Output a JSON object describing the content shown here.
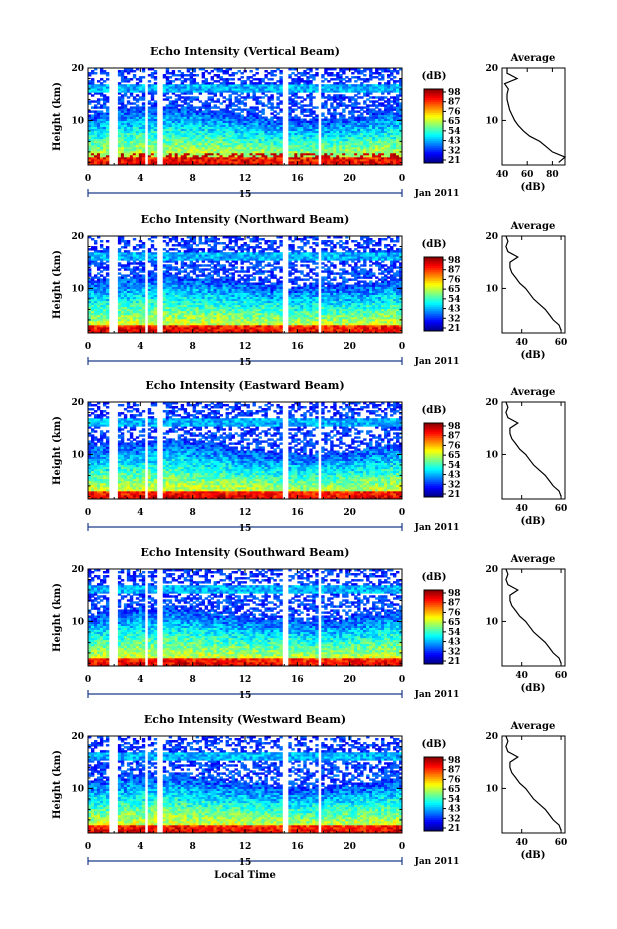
{
  "figure": {
    "xlabel_bottom": "Local Time",
    "date_label": "Jan 2011",
    "day_label": "15"
  },
  "chart_data": [
    {
      "type": "heatmap",
      "title": "Echo Intensity (Vertical Beam)",
      "ylabel": "Height (km)",
      "x_range": [
        0,
        24
      ],
      "y_range": [
        1.5,
        20
      ],
      "x_ticks": [
        "0",
        "4",
        "8",
        "12",
        "16",
        "20",
        "0"
      ],
      "y_ticks": [
        "20",
        "10"
      ],
      "colorbar": {
        "label": "(dB)",
        "ticks": [
          "98",
          "87",
          "76",
          "65",
          "54",
          "43",
          "32",
          "21"
        ]
      },
      "data_gaps_hours": [
        [
          1.7,
          2.4
        ],
        [
          4.3,
          4.6
        ],
        [
          5.2,
          5.6
        ],
        [
          14.8,
          15.3
        ],
        [
          17.6,
          17.9
        ]
      ],
      "average_profile": {
        "title": "Average",
        "xlabel": "(dB)",
        "x_ticks": [
          "40",
          "60",
          "80"
        ],
        "xlim": [
          40,
          90
        ],
        "heights": [
          2,
          3,
          4,
          5,
          6,
          7,
          8,
          9,
          10,
          11,
          12,
          13,
          14,
          15,
          16,
          17,
          18,
          19,
          20
        ],
        "values": [
          85,
          90,
          80,
          75,
          70,
          62,
          57,
          53,
          50,
          48,
          46,
          45,
          44,
          44,
          45,
          42,
          52,
          44,
          44
        ]
      }
    },
    {
      "type": "heatmap",
      "title": "Echo Intensity (Northward Beam)",
      "ylabel": "Height (km)",
      "x_range": [
        0,
        24
      ],
      "y_range": [
        1.5,
        20
      ],
      "x_ticks": [
        "0",
        "4",
        "8",
        "12",
        "16",
        "20",
        "0"
      ],
      "y_ticks": [
        "20",
        "10"
      ],
      "colorbar": {
        "label": "(dB)",
        "ticks": [
          "98",
          "87",
          "76",
          "65",
          "54",
          "43",
          "32",
          "21"
        ]
      },
      "data_gaps_hours": [
        [
          1.7,
          2.4
        ],
        [
          4.3,
          4.6
        ],
        [
          5.2,
          5.6
        ],
        [
          14.8,
          15.3
        ],
        [
          17.6,
          17.9
        ]
      ],
      "average_profile": {
        "title": "Average",
        "xlabel": "(dB)",
        "x_ticks": [
          "40",
          "60"
        ],
        "xlim": [
          30,
          62
        ],
        "heights": [
          2,
          3,
          4,
          5,
          6,
          7,
          8,
          9,
          10,
          11,
          12,
          13,
          14,
          15,
          16,
          17,
          18,
          19,
          20
        ],
        "values": [
          60,
          59,
          56,
          54,
          52,
          49,
          46,
          44,
          42,
          39,
          37,
          35,
          34,
          34,
          38,
          33,
          32,
          33,
          32
        ]
      }
    },
    {
      "type": "heatmap",
      "title": "Echo Intensity (Eastward Beam)",
      "ylabel": "Height (km)",
      "x_range": [
        0,
        24
      ],
      "y_range": [
        1.5,
        20
      ],
      "x_ticks": [
        "0",
        "4",
        "8",
        "12",
        "16",
        "20",
        "0"
      ],
      "y_ticks": [
        "20",
        "10"
      ],
      "colorbar": {
        "label": "(dB)",
        "ticks": [
          "98",
          "87",
          "76",
          "65",
          "54",
          "43",
          "32",
          "21"
        ]
      },
      "data_gaps_hours": [
        [
          1.7,
          2.4
        ],
        [
          4.3,
          4.6
        ],
        [
          5.2,
          5.6
        ],
        [
          14.8,
          15.3
        ],
        [
          17.6,
          17.9
        ]
      ],
      "average_profile": {
        "title": "Average",
        "xlabel": "(dB)",
        "x_ticks": [
          "40",
          "60"
        ],
        "xlim": [
          30,
          62
        ],
        "heights": [
          2,
          3,
          4,
          5,
          6,
          7,
          8,
          9,
          10,
          11,
          12,
          13,
          14,
          15,
          16,
          17,
          18,
          19,
          20
        ],
        "values": [
          60,
          59,
          56,
          54,
          52,
          49,
          46,
          44,
          42,
          39,
          37,
          35,
          34,
          34,
          38,
          33,
          32,
          33,
          32
        ]
      }
    },
    {
      "type": "heatmap",
      "title": "Echo Intensity (Southward Beam)",
      "ylabel": "Height (km)",
      "x_range": [
        0,
        24
      ],
      "y_range": [
        1.5,
        20
      ],
      "x_ticks": [
        "0",
        "4",
        "8",
        "12",
        "16",
        "20",
        "0"
      ],
      "y_ticks": [
        "20",
        "10"
      ],
      "colorbar": {
        "label": "(dB)",
        "ticks": [
          "98",
          "87",
          "76",
          "65",
          "54",
          "43",
          "32",
          "21"
        ]
      },
      "data_gaps_hours": [
        [
          1.7,
          2.4
        ],
        [
          4.3,
          4.6
        ],
        [
          5.2,
          5.6
        ],
        [
          14.8,
          15.3
        ],
        [
          17.6,
          17.9
        ]
      ],
      "average_profile": {
        "title": "Average",
        "xlabel": "(dB)",
        "x_ticks": [
          "40",
          "60"
        ],
        "xlim": [
          30,
          62
        ],
        "heights": [
          2,
          3,
          4,
          5,
          6,
          7,
          8,
          9,
          10,
          11,
          12,
          13,
          14,
          15,
          16,
          17,
          18,
          19,
          20
        ],
        "values": [
          60,
          59,
          56,
          54,
          52,
          49,
          46,
          44,
          42,
          39,
          37,
          35,
          34,
          34,
          38,
          33,
          32,
          33,
          32
        ]
      }
    },
    {
      "type": "heatmap",
      "title": "Echo Intensity (Westward Beam)",
      "ylabel": "Height (km)",
      "x_range": [
        0,
        24
      ],
      "y_range": [
        1.5,
        20
      ],
      "x_ticks": [
        "0",
        "4",
        "8",
        "12",
        "16",
        "20",
        "0"
      ],
      "y_ticks": [
        "20",
        "10"
      ],
      "colorbar": {
        "label": "(dB)",
        "ticks": [
          "98",
          "87",
          "76",
          "65",
          "54",
          "43",
          "32",
          "21"
        ]
      },
      "data_gaps_hours": [
        [
          1.7,
          2.4
        ],
        [
          4.3,
          4.6
        ],
        [
          5.2,
          5.6
        ],
        [
          14.8,
          15.3
        ],
        [
          17.6,
          17.9
        ]
      ],
      "average_profile": {
        "title": "Average",
        "xlabel": "(dB)",
        "x_ticks": [
          "40",
          "60"
        ],
        "xlim": [
          30,
          62
        ],
        "heights": [
          2,
          3,
          4,
          5,
          6,
          7,
          8,
          9,
          10,
          11,
          12,
          13,
          14,
          15,
          16,
          17,
          18,
          19,
          20
        ],
        "values": [
          60,
          59,
          56,
          54,
          52,
          49,
          46,
          44,
          42,
          39,
          37,
          35,
          34,
          34,
          38,
          33,
          32,
          33,
          32
        ]
      }
    }
  ]
}
